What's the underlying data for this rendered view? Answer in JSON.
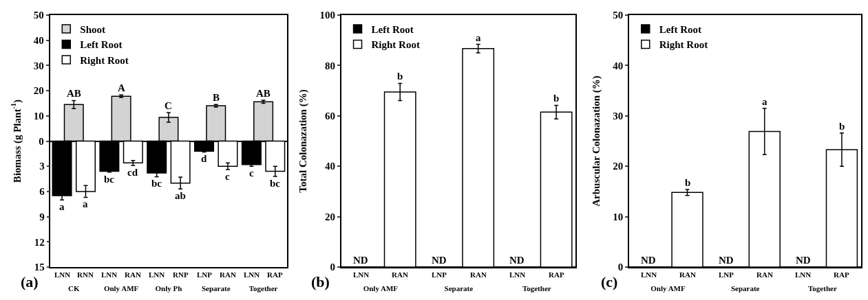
{
  "chart_data": [
    {
      "type": "bar",
      "ylabel": "Biomass (g Plant$^{-1}$)",
      "categories": [
        "CK",
        "Only AMF",
        "Only Ph",
        "Separate",
        "Together"
      ],
      "series": [
        {
          "name": "Shoot",
          "color": "#d3d3d3",
          "values": [
            14.5,
            17.8,
            9.4,
            14.0,
            15.6
          ],
          "errors": [
            1.6,
            0.5,
            1.9,
            0.5,
            0.6
          ],
          "value_labels": [
            "AB",
            "A",
            "C",
            "B",
            "AB"
          ]
        },
        {
          "name": "Left Root",
          "color": "#000000",
          "axis": "y2",
          "values": [
            6.5,
            3.6,
            3.8,
            1.2,
            2.8
          ],
          "errors": [
            0.5,
            0.1,
            0.45,
            0.1,
            0.2
          ],
          "value_labels": [
            "a",
            "bc",
            "bc",
            "d",
            "c"
          ]
        },
        {
          "name": "Right Root",
          "color": "#ffffff",
          "axis": "y2",
          "values": [
            6.0,
            2.6,
            5.0,
            3.0,
            3.6
          ],
          "errors": [
            0.7,
            0.3,
            0.7,
            0.4,
            0.6
          ],
          "value_labels": [
            "a",
            "cd",
            "ab",
            "c",
            "bc"
          ]
        }
      ],
      "ylim": [
        -50,
        50
      ],
      "yticks": [
        0,
        10,
        20,
        30,
        40,
        50
      ],
      "y2lim": [
        15,
        -15
      ],
      "y2ticks": [
        3,
        6,
        9,
        12,
        15
      ],
      "legend": "top left",
      "annotations": [
        "LNN",
        "RNN",
        "LNN",
        "RAN",
        "LNN",
        "RNP",
        "LNP",
        "RAN",
        "LNN",
        "RAP",
        "(a)"
      ]
    },
    {
      "type": "bar",
      "ylabel": "Total Colonazation (%)",
      "categories": [
        "Only AMF",
        "Separate",
        "Together"
      ],
      "series": [
        {
          "name": "Left Root",
          "color": "#000000",
          "values": [
            null,
            null,
            null
          ],
          "value_labels": [
            "ND",
            "ND",
            "ND"
          ]
        },
        {
          "name": "Right Root",
          "color": "#ffffff",
          "values": [
            69.5,
            86.7,
            61.5
          ],
          "errors": [
            3.4,
            1.7,
            2.7
          ],
          "value_labels": [
            "b",
            "a",
            "b"
          ]
        }
      ],
      "ylim": [
        0,
        100
      ],
      "yticks": [
        0,
        20,
        40,
        60,
        80,
        100
      ],
      "legend": "top left",
      "annotations": [
        "LNN",
        "RAN",
        "LNP",
        "RAN",
        "LNN",
        "RAP",
        "(b)"
      ]
    },
    {
      "type": "bar",
      "ylabel": "Arbuscular Colonazation (%)",
      "categories": [
        "Only AMF",
        "Separate",
        "Together"
      ],
      "series": [
        {
          "name": "Left Root",
          "color": "#000000",
          "values": [
            null,
            null,
            null
          ],
          "value_labels": [
            "ND",
            "ND",
            "ND"
          ]
        },
        {
          "name": "Right Root",
          "color": "#ffffff",
          "values": [
            14.8,
            26.9,
            23.3
          ],
          "errors": [
            0.6,
            4.6,
            3.3
          ],
          "value_labels": [
            "b",
            "a",
            "b"
          ]
        }
      ],
      "ylim": [
        0,
        50
      ],
      "yticks": [
        0,
        10,
        20,
        30,
        40,
        50
      ],
      "legend": "top left",
      "annotations": [
        "LNN",
        "RAN",
        "LNP",
        "RAN",
        "LNN",
        "RAP",
        "(c)"
      ]
    }
  ]
}
